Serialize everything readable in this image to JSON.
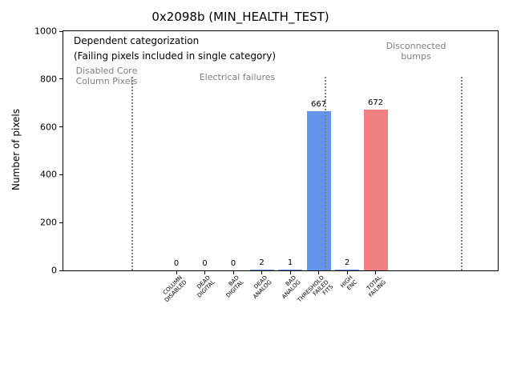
{
  "chart_data": {
    "type": "bar",
    "title": "0x2098b (MIN_HEALTH_TEST)",
    "ylabel": "Number of pixels",
    "xlabel": "",
    "ylim": [
      0,
      1000
    ],
    "yticks": [
      0,
      200,
      400,
      600,
      800,
      1000
    ],
    "categories": [
      "COLUMN\nDISABLED",
      "DEAD\nDIGITAL",
      "BAD\nDIGITAL",
      "DEAD\nANALOG",
      "BAD\nANALOG",
      "THRESHOLD\nFAILED\nFITS",
      "HIGH\nENC",
      "TOTAL\nFAILING"
    ],
    "values": [
      0,
      0,
      0,
      2,
      1,
      667,
      2,
      672
    ],
    "bar_colors": [
      "#6495ed",
      "#6495ed",
      "#6495ed",
      "#6495ed",
      "#6495ed",
      "#6495ed",
      "#6495ed",
      "#f08080"
    ],
    "annotations": {
      "line1": "Dependent categorization",
      "line2": "(Failing pixels included in single category)"
    },
    "region_labels": [
      {
        "text": "Disabled Core\nColumn Pixels",
        "color": "#808080"
      },
      {
        "text": "Electrical failures",
        "color": "#808080"
      },
      {
        "text": "Disconnected\nbumps",
        "color": "#808080"
      }
    ],
    "grid": false,
    "legend": false
  }
}
